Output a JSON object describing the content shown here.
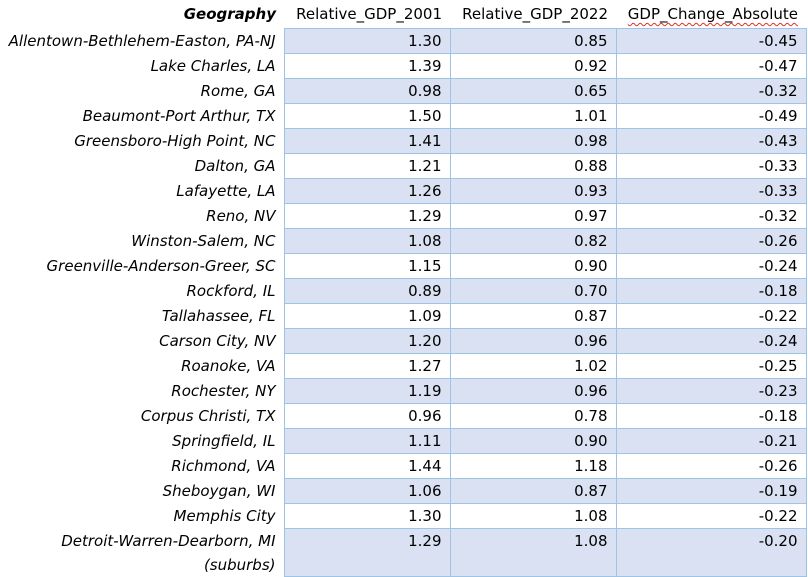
{
  "headers": [
    "Geography",
    "Relative_GDP_2001",
    "Relative_GDP_2022",
    "GDP_Change_Absolute"
  ],
  "rows": [
    {
      "geography": "Allentown-Bethlehem-Easton, PA-NJ",
      "gdp2001": "1.30",
      "gdp2022": "0.85",
      "change": "-0.45"
    },
    {
      "geography": "Lake Charles, LA",
      "gdp2001": "1.39",
      "gdp2022": "0.92",
      "change": "-0.47"
    },
    {
      "geography": "Rome, GA",
      "gdp2001": "0.98",
      "gdp2022": "0.65",
      "change": "-0.32"
    },
    {
      "geography": "Beaumont-Port Arthur, TX",
      "gdp2001": "1.50",
      "gdp2022": "1.01",
      "change": "-0.49"
    },
    {
      "geography": "Greensboro-High Point, NC",
      "gdp2001": "1.41",
      "gdp2022": "0.98",
      "change": "-0.43"
    },
    {
      "geography": "Dalton, GA",
      "gdp2001": "1.21",
      "gdp2022": "0.88",
      "change": "-0.33"
    },
    {
      "geography": "Lafayette, LA",
      "gdp2001": "1.26",
      "gdp2022": "0.93",
      "change": "-0.33"
    },
    {
      "geography": "Reno, NV",
      "gdp2001": "1.29",
      "gdp2022": "0.97",
      "change": "-0.32"
    },
    {
      "geography": "Winston-Salem, NC",
      "gdp2001": "1.08",
      "gdp2022": "0.82",
      "change": "-0.26"
    },
    {
      "geography": "Greenville-Anderson-Greer, SC",
      "gdp2001": "1.15",
      "gdp2022": "0.90",
      "change": "-0.24"
    },
    {
      "geography": "Rockford, IL",
      "gdp2001": "0.89",
      "gdp2022": "0.70",
      "change": "-0.18"
    },
    {
      "geography": "Tallahassee, FL",
      "gdp2001": "1.09",
      "gdp2022": "0.87",
      "change": "-0.22"
    },
    {
      "geography": "Carson City, NV",
      "gdp2001": "1.20",
      "gdp2022": "0.96",
      "change": "-0.24"
    },
    {
      "geography": "Roanoke, VA",
      "gdp2001": "1.27",
      "gdp2022": "1.02",
      "change": "-0.25"
    },
    {
      "geography": "Rochester, NY",
      "gdp2001": "1.19",
      "gdp2022": "0.96",
      "change": "-0.23"
    },
    {
      "geography": "Corpus Christi, TX",
      "gdp2001": "0.96",
      "gdp2022": "0.78",
      "change": "-0.18"
    },
    {
      "geography": "Springfield, IL",
      "gdp2001": "1.11",
      "gdp2022": "0.90",
      "change": "-0.21"
    },
    {
      "geography": "Richmond, VA",
      "gdp2001": "1.44",
      "gdp2022": "1.18",
      "change": "-0.26"
    },
    {
      "geography": "Sheboygan, WI",
      "gdp2001": "1.06",
      "gdp2022": "0.87",
      "change": "-0.19"
    },
    {
      "geography": "Memphis City",
      "gdp2001": "1.30",
      "gdp2022": "1.08",
      "change": "-0.22"
    },
    {
      "geography": "Detroit-Warren-Dearborn, MI",
      "geography_suffix": "(suburbs)",
      "gdp2001": "1.29",
      "gdp2022": "1.08",
      "change": "-0.20"
    }
  ],
  "colors": {
    "band_fill": "#d9e1f2",
    "cell_border": "#9dc3e6",
    "spellcheck_underline": "#d9302c"
  }
}
